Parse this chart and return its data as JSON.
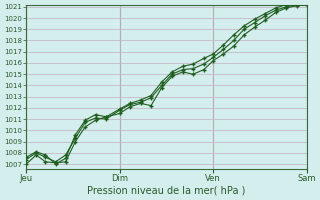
{
  "title": "",
  "xlabel": "Pression niveau de la mer( hPa )",
  "ylabel": "",
  "bg_color": "#d4eeee",
  "grid_color": "#c8b8c8",
  "line_color": "#1e5e1e",
  "ylim": [
    1007,
    1021
  ],
  "yticks": [
    1007,
    1008,
    1009,
    1010,
    1011,
    1012,
    1013,
    1014,
    1015,
    1016,
    1017,
    1018,
    1019,
    1020,
    1021
  ],
  "day_labels": [
    "Jeu",
    "Dim",
    "Ven",
    "Sam"
  ],
  "day_positions": [
    0.0,
    0.333,
    0.667,
    1.0
  ],
  "series1_x": [
    0.0,
    0.035,
    0.068,
    0.105,
    0.14,
    0.175,
    0.21,
    0.247,
    0.285,
    0.333,
    0.37,
    0.408,
    0.445,
    0.483,
    0.52,
    0.558,
    0.595,
    0.633,
    0.667,
    0.703,
    0.74,
    0.777,
    0.815,
    0.852,
    0.89,
    0.928,
    0.965,
    1.0
  ],
  "series1_y": [
    1007.0,
    1007.8,
    1007.2,
    1007.1,
    1007.2,
    1009.0,
    1010.3,
    1010.9,
    1011.2,
    1011.5,
    1012.1,
    1012.4,
    1012.2,
    1013.8,
    1014.8,
    1015.2,
    1015.0,
    1015.4,
    1016.2,
    1016.8,
    1017.5,
    1018.5,
    1019.2,
    1019.8,
    1020.5,
    1020.9,
    1021.1,
    1021.2
  ],
  "series2_x": [
    0.0,
    0.035,
    0.068,
    0.105,
    0.14,
    0.175,
    0.21,
    0.247,
    0.285,
    0.333,
    0.37,
    0.408,
    0.445,
    0.483,
    0.52,
    0.558,
    0.595,
    0.633,
    0.667,
    0.703,
    0.74,
    0.777,
    0.815,
    0.852,
    0.89,
    0.928,
    0.965,
    1.0
  ],
  "series2_y": [
    1007.4,
    1008.0,
    1007.6,
    1007.2,
    1007.8,
    1009.3,
    1010.7,
    1011.1,
    1011.0,
    1011.8,
    1012.3,
    1012.5,
    1012.9,
    1014.0,
    1015.0,
    1015.4,
    1015.5,
    1015.9,
    1016.5,
    1017.2,
    1018.0,
    1019.0,
    1019.6,
    1020.2,
    1020.7,
    1021.0,
    1021.2,
    1021.3
  ],
  "series3_x": [
    0.0,
    0.035,
    0.068,
    0.105,
    0.14,
    0.175,
    0.21,
    0.247,
    0.285,
    0.333,
    0.37,
    0.408,
    0.445,
    0.483,
    0.52,
    0.558,
    0.595,
    0.633,
    0.667,
    0.703,
    0.74,
    0.777,
    0.815,
    0.852,
    0.89,
    0.928,
    0.965,
    1.0
  ],
  "series3_y": [
    1007.6,
    1008.1,
    1007.8,
    1007.0,
    1007.5,
    1009.6,
    1010.9,
    1011.4,
    1011.2,
    1011.9,
    1012.4,
    1012.7,
    1013.1,
    1014.3,
    1015.2,
    1015.7,
    1015.9,
    1016.4,
    1016.8,
    1017.6,
    1018.5,
    1019.3,
    1019.9,
    1020.4,
    1020.9,
    1021.2,
    1021.4,
    1021.5
  ]
}
